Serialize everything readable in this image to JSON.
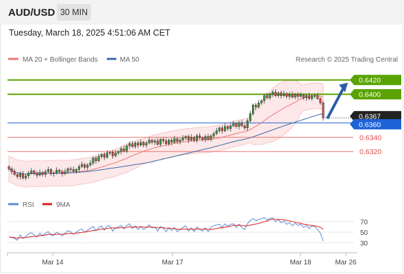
{
  "header": {
    "symbol": "AUD/USD",
    "timeframe": "30 MIN"
  },
  "datetime": "Tuesday, March 18, 2025 4:51:06 AM CET",
  "legend": {
    "ma20": "MA 20 + Bollinger Bands",
    "ma50": "MA 50",
    "copyright": "Research © 2025 Trading Central"
  },
  "colors": {
    "resistance": "#5aa300",
    "support": "#f07474",
    "current": "#1e63d6",
    "ma20": "#f07474",
    "ma50": "#3d67aa",
    "bull": "#3d9c3d",
    "bear": "#e04848",
    "arrow": "#2c5ea8",
    "rsi": "#5b8ad6",
    "rsi_ma": "#e01b1b"
  },
  "chart_data": [
    {
      "type": "candlestick",
      "ylim": [
        0.6259,
        0.6436
      ],
      "xlabels": [
        "Mar 14",
        "Mar 17",
        "Mar 18",
        "Mar 26"
      ],
      "levels": [
        {
          "label": "0.6420",
          "value": 0.642,
          "kind": "resistance"
        },
        {
          "label": "0.6400",
          "value": 0.64,
          "kind": "resistance"
        },
        {
          "label": "0.6367",
          "value": 0.6367,
          "kind": "last"
        },
        {
          "label": "0.6360",
          "value": 0.636,
          "kind": "pivot"
        },
        {
          "label": "0.6340",
          "value": 0.634,
          "kind": "support"
        },
        {
          "label": "0.6320",
          "value": 0.632,
          "kind": "support"
        }
      ],
      "close": [
        0.6296,
        0.6292,
        0.6288,
        0.6285,
        0.6289,
        0.6283,
        0.6286,
        0.629,
        0.6293,
        0.629,
        0.6287,
        0.6291,
        0.6288,
        0.6292,
        0.6295,
        0.6289,
        0.629,
        0.6294,
        0.6292,
        0.6289,
        0.6292,
        0.6296,
        0.6295,
        0.6292,
        0.6295,
        0.6299,
        0.6302,
        0.6298,
        0.6301,
        0.6304,
        0.6311,
        0.6307,
        0.6313,
        0.6316,
        0.6312,
        0.6318,
        0.6319,
        0.6314,
        0.6318,
        0.632,
        0.6324,
        0.6321,
        0.6328,
        0.6331,
        0.6327,
        0.6332,
        0.6329,
        0.6333,
        0.6329,
        0.6332,
        0.6336,
        0.6333,
        0.6335,
        0.633,
        0.6337,
        0.6335,
        0.6331,
        0.6336,
        0.6333,
        0.6338,
        0.6334,
        0.6336,
        0.6339,
        0.6341,
        0.6336,
        0.634,
        0.6336,
        0.6342,
        0.6339,
        0.6337,
        0.6341,
        0.6337,
        0.6342,
        0.6345,
        0.6349,
        0.6353,
        0.6349,
        0.6355,
        0.6352,
        0.6356,
        0.6359,
        0.6355,
        0.636,
        0.6356,
        0.6353,
        0.6363,
        0.6373,
        0.6385,
        0.6382,
        0.6388,
        0.6391,
        0.6398,
        0.6395,
        0.64,
        0.6403,
        0.6398,
        0.6402,
        0.6398,
        0.6401,
        0.6397,
        0.64,
        0.6396,
        0.64,
        0.6397,
        0.6399,
        0.6395,
        0.6398,
        0.6394,
        0.6398,
        0.6398,
        0.6394,
        0.6388,
        0.6367
      ],
      "rsi": {
        "ticks": [
          70,
          50,
          30
        ],
        "ylim": [
          15,
          85
        ],
        "legend": {
          "rsi": "RSI",
          "ma": "9MA"
        },
        "values": [
          41,
          40,
          38,
          35,
          45,
          38,
          42,
          47,
          49,
          45,
          41,
          48,
          43,
          48,
          51,
          44,
          44,
          50,
          47,
          43,
          48,
          53,
          51,
          46,
          50,
          54,
          56,
          50,
          54,
          57,
          61,
          53,
          58,
          62,
          54,
          62,
          62,
          52,
          58,
          60,
          63,
          56,
          63,
          66,
          57,
          62,
          55,
          61,
          55,
          59,
          64,
          58,
          60,
          52,
          61,
          58,
          51,
          58,
          53,
          59,
          51,
          55,
          59,
          62,
          52,
          58,
          51,
          60,
          55,
          52,
          58,
          51,
          59,
          62,
          64,
          65,
          59,
          66,
          61,
          65,
          66,
          59,
          65,
          59,
          55,
          66,
          72,
          76,
          72,
          74,
          75,
          78,
          73,
          76,
          77,
          70,
          74,
          68,
          71,
          65,
          68,
          62,
          67,
          63,
          65,
          59,
          63,
          57,
          62,
          61,
          55,
          48,
          33
        ]
      }
    }
  ]
}
